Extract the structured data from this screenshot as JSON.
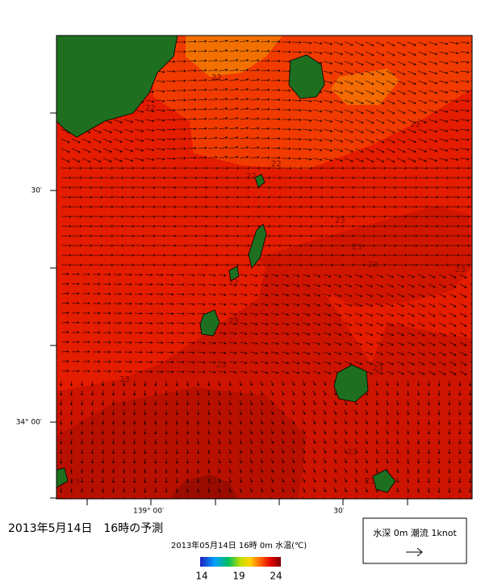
{
  "header": {
    "title": "2013年5月14日　16時の予測"
  },
  "map": {
    "lat_labels": [
      "30′",
      "34° 00′"
    ],
    "lon_labels": [
      "139° 00′",
      "30′"
    ],
    "contour_labels": [
      "22",
      "22",
      "23",
      "22",
      "22",
      "23",
      "23",
      "23",
      "22",
      "23",
      "23",
      "23",
      "23",
      "23",
      "23",
      "23",
      "23",
      "23"
    ]
  },
  "colorbar": {
    "caption": "2013年05月14日 16時 0m 水温(℃)",
    "ticks": [
      14,
      19,
      24
    ]
  },
  "legend": {
    "text": "水深 0m 潮流 1knot"
  }
}
